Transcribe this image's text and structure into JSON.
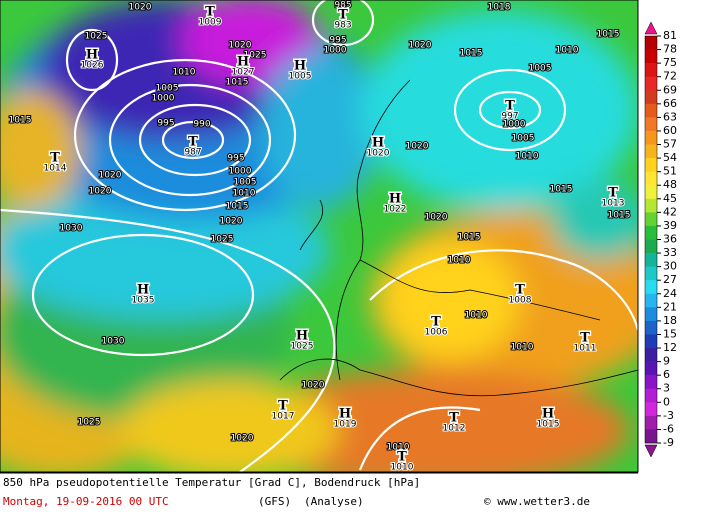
{
  "centers": [
    {
      "symbol": "T",
      "value": 1009
    },
    {
      "symbol": "T",
      "value": 983
    },
    {
      "symbol": "H",
      "value": 1026
    },
    {
      "symbol": "H",
      "value": 1027
    },
    {
      "symbol": "H",
      "value": 1005
    },
    {
      "symbol": "T",
      "value": 987
    },
    {
      "symbol": "T",
      "value": 997
    },
    {
      "symbol": "H",
      "value": 1020
    },
    {
      "symbol": "T",
      "value": 1014
    },
    {
      "symbol": "H",
      "value": 1022
    },
    {
      "symbol": "T",
      "value": 1013
    },
    {
      "symbol": "H",
      "value": 1035
    },
    {
      "symbol": "T",
      "value": 1008
    },
    {
      "symbol": "T",
      "value": 1006
    },
    {
      "symbol": "H",
      "value": 1025
    },
    {
      "symbol": "T",
      "value": 1011
    },
    {
      "symbol": "T",
      "value": 1017
    },
    {
      "symbol": "H",
      "value": 1019
    },
    {
      "symbol": "T",
      "value": 1012
    },
    {
      "symbol": "H",
      "value": 1015
    },
    {
      "symbol": "T",
      "value": 1010
    }
  ],
  "isobar_labels": [
    1020,
    1025,
    1010,
    1005,
    1000,
    995,
    990,
    995,
    1000,
    1005,
    1010,
    1015,
    1020,
    1025,
    1020,
    1020,
    1015,
    1030,
    1030,
    1025,
    1020,
    1020,
    1020,
    1020,
    1015,
    1010,
    1015,
    1015,
    1010,
    1005,
    1000,
    1005,
    1010,
    1015,
    1015,
    1020,
    1018,
    985,
    995,
    1000,
    1020,
    1025,
    1015,
    1010,
    1010,
    1010
  ],
  "color_scale": {
    "ticks": [
      81,
      78,
      75,
      72,
      69,
      66,
      63,
      60,
      57,
      54,
      51,
      48,
      45,
      42,
      39,
      36,
      33,
      30,
      27,
      24,
      21,
      18,
      15,
      12,
      9,
      6,
      3,
      0,
      -3,
      -6,
      -9
    ],
    "colors": [
      "#b40000",
      "#c80000",
      "#dc1414",
      "#e62828",
      "#d23c1e",
      "#e65a1e",
      "#f07828",
      "#f5961e",
      "#f5b41e",
      "#ffd21e",
      "#ffe632",
      "#f0f03c",
      "#b4e632",
      "#64d232",
      "#28be3c",
      "#1eaa50",
      "#14b49b",
      "#1ec8c8",
      "#28dcf0",
      "#28b4f0",
      "#1e8cdc",
      "#1e64c8",
      "#1e3cb4",
      "#3c1ea0",
      "#5a14b4",
      "#8c14c8",
      "#b41ed2",
      "#d228dc",
      "#a01eaa",
      "#78148c"
    ]
  },
  "footer": {
    "title": "850 hPa pseudopotentielle Temperatur [Grad C], Bodendruck [hPa]",
    "date": "Montag, 19-09-2016  00 UTC",
    "model": "(GFS)",
    "run": "(Analyse)",
    "credit": "© www.wetter3.de"
  }
}
